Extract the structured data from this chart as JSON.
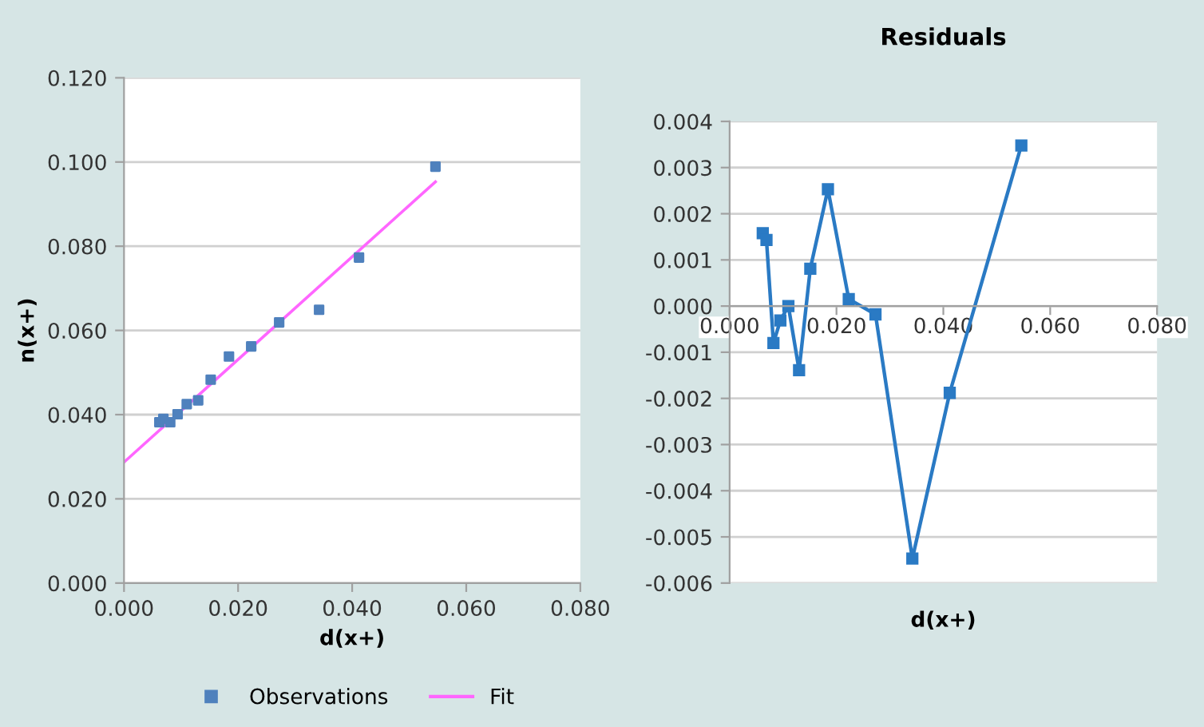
{
  "chart_data": [
    {
      "type": "scatter",
      "xlabel": "d(x+)",
      "ylabel": "n(x+)",
      "xlim": [
        0,
        0.08
      ],
      "xticks": [
        {
          "value": 0,
          "label": "0.000"
        },
        {
          "value": 0.02,
          "label": "0.020"
        },
        {
          "value": 0.04,
          "label": "0.040"
        },
        {
          "value": 0.06,
          "label": "0.060"
        },
        {
          "value": 0.08,
          "label": "0.080"
        }
      ],
      "ylim": [
        0,
        0.12
      ],
      "yticks": [
        {
          "value": 0,
          "label": "0.000"
        },
        {
          "value": 0.02,
          "label": "0.020"
        },
        {
          "value": 0.04,
          "label": "0.040"
        },
        {
          "value": 0.06,
          "label": "0.060"
        },
        {
          "value": 0.08,
          "label": "0.080"
        },
        {
          "value": 0.1,
          "label": "0.100"
        },
        {
          "value": 0.12,
          "label": "0.120"
        }
      ],
      "grid": "y",
      "legend": "bottom",
      "series": [
        {
          "name": "Observations",
          "type": "scatter",
          "marker": "square",
          "color": "#4f81bd",
          "x": [
            0.0062,
            0.0069,
            0.0081,
            0.0094,
            0.011,
            0.013,
            0.0152,
            0.0184,
            0.0223,
            0.0272,
            0.0342,
            0.0412,
            0.0546
          ],
          "values": [
            0.0382,
            0.039,
            0.0382,
            0.0401,
            0.0425,
            0.0434,
            0.0483,
            0.0538,
            0.0562,
            0.0619,
            0.0649,
            0.0773,
            0.0989
          ]
        },
        {
          "name": "Fit",
          "type": "line",
          "marker": "none",
          "color": "#ff66ff",
          "x": [
            0,
            0.0546
          ],
          "values": [
            0.0287,
            0.0953
          ]
        }
      ]
    },
    {
      "type": "line",
      "title": "Residuals",
      "xlabel": "d(x+)",
      "xlim": [
        0,
        0.08
      ],
      "xticks": [
        {
          "value": 0,
          "label": "0.000"
        },
        {
          "value": 0.02,
          "label": "0.020"
        },
        {
          "value": 0.04,
          "label": "0.040"
        },
        {
          "value": 0.06,
          "label": "0.060"
        },
        {
          "value": 0.08,
          "label": "0.080"
        }
      ],
      "ylim": [
        -0.006,
        0.004
      ],
      "yticks": [
        {
          "value": -0.006,
          "label": "-0.006"
        },
        {
          "value": -0.005,
          "label": "-0.005"
        },
        {
          "value": -0.004,
          "label": "-0.004"
        },
        {
          "value": -0.003,
          "label": "-0.003"
        },
        {
          "value": -0.002,
          "label": "-0.002"
        },
        {
          "value": -0.001,
          "label": "-0.001"
        },
        {
          "value": 0,
          "label": "0.000"
        },
        {
          "value": 0.001,
          "label": "0.001"
        },
        {
          "value": 0.002,
          "label": "0.002"
        },
        {
          "value": 0.003,
          "label": "0.003"
        },
        {
          "value": 0.004,
          "label": "0.004"
        }
      ],
      "grid": "y",
      "marker": "square",
      "line_style": "solid",
      "series": [
        {
          "color": "#2a7ac4",
          "x": [
            0.0062,
            0.0069,
            0.0082,
            0.0095,
            0.011,
            0.013,
            0.0151,
            0.0184,
            0.0223,
            0.0273,
            0.0342,
            0.0412,
            0.0546
          ],
          "values": [
            0.00158,
            0.00143,
            -0.0008,
            -0.00031,
            0,
            -0.00139,
            0.00081,
            0.00253,
            0.00015,
            -0.00018,
            -0.00547,
            -0.00188,
            0.00348
          ]
        }
      ]
    }
  ]
}
